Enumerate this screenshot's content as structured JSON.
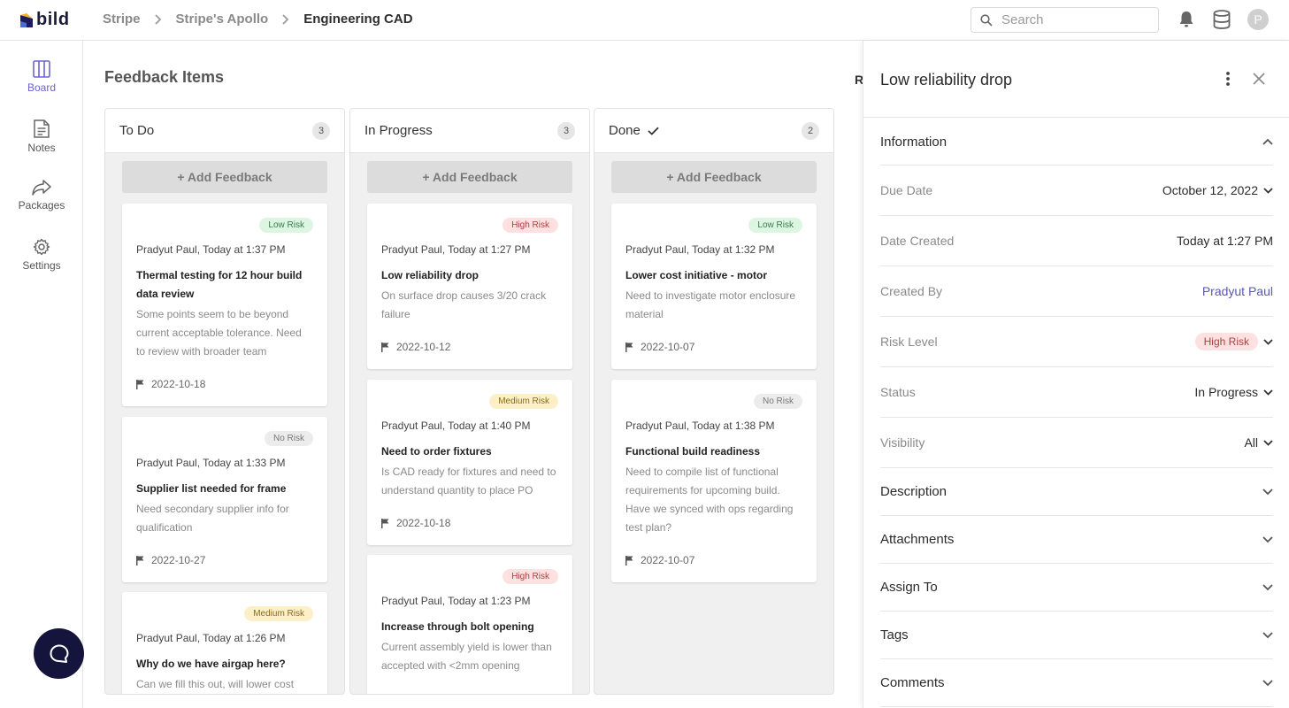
{
  "header": {
    "logo_text": "bild",
    "breadcrumb": [
      "Stripe",
      "Stripe's Apollo",
      "Engineering CAD"
    ],
    "search_placeholder": "Search",
    "avatar_initial": "P"
  },
  "nav": {
    "items": [
      {
        "label": "Board",
        "icon": "board-icon",
        "active": true
      },
      {
        "label": "Notes",
        "icon": "notes-icon",
        "active": false
      },
      {
        "label": "Packages",
        "icon": "share-icon",
        "active": false
      },
      {
        "label": "Settings",
        "icon": "gear-icon",
        "active": false
      }
    ]
  },
  "board": {
    "title": "Feedback Items",
    "cut_letter": "R",
    "add_label": "+ Add Feedback",
    "columns": [
      {
        "title": "To Do",
        "count": "3",
        "cards": [
          {
            "risk": "Low Risk",
            "meta": "Pradyut Paul, Today at 1:37 PM",
            "title": "Thermal testing for 12 hour build data review",
            "desc": "Some points seem to be beyond current acceptable tolerance. Need to review with broader team",
            "date": "2022-10-18"
          },
          {
            "risk": "No Risk",
            "meta": "Pradyut Paul, Today at 1:33 PM",
            "title": "Supplier list needed for frame",
            "desc": "Need secondary supplier info for qualification",
            "date": "2022-10-27"
          },
          {
            "risk": "Medium Risk",
            "meta": "Pradyut Paul, Today at 1:26 PM",
            "title": "Why do we have airgap here?",
            "desc": "Can we fill this out, will lower cost",
            "date": ""
          }
        ]
      },
      {
        "title": "In Progress",
        "count": "3",
        "cards": [
          {
            "risk": "High Risk",
            "meta": "Pradyut Paul, Today at 1:27 PM",
            "title": "Low reliability drop",
            "desc": "On surface drop causes 3/20 crack failure",
            "date": "2022-10-12"
          },
          {
            "risk": "Medium Risk",
            "meta": "Pradyut Paul, Today at 1:40 PM",
            "title": "Need to order fixtures",
            "desc": "Is CAD ready for fixtures and need to understand quantity to place PO",
            "date": "2022-10-18"
          },
          {
            "risk": "High Risk",
            "meta": "Pradyut Paul, Today at 1:23 PM",
            "title": "Increase through bolt opening",
            "desc": "Current assembly yield is lower than accepted with <2mm opening",
            "date": ""
          }
        ]
      },
      {
        "title": "Done",
        "count": "2",
        "cards": [
          {
            "risk": "Low Risk",
            "meta": "Pradyut Paul, Today at 1:32 PM",
            "title": "Lower cost initiative - motor",
            "desc": "Need to investigate motor enclosure material",
            "date": "2022-10-07"
          },
          {
            "risk": "No Risk",
            "meta": "Pradyut Paul, Today at 1:38 PM",
            "title": "Functional build readiness",
            "desc": "Need to compile list of functional requirements for upcoming build. Have we synced with ops regarding test plan?",
            "date": "2022-10-07"
          }
        ]
      }
    ]
  },
  "panel": {
    "title": "Low reliability drop",
    "information_label": "Information",
    "fields": {
      "due_date": {
        "label": "Due Date",
        "value": "October 12, 2022"
      },
      "date_created": {
        "label": "Date Created",
        "value": "Today at 1:27 PM"
      },
      "created_by": {
        "label": "Created By",
        "value": "Pradyut Paul"
      },
      "risk_level": {
        "label": "Risk Level",
        "value": "High Risk"
      },
      "status": {
        "label": "Status",
        "value": "In Progress"
      },
      "visibility": {
        "label": "Visibility",
        "value": "All"
      }
    },
    "sections": [
      "Description",
      "Attachments",
      "Assign To",
      "Tags",
      "Comments"
    ]
  },
  "colors": {
    "accent": "#6b63d6",
    "link": "#5a57b0",
    "chat_bg": "#14143c"
  }
}
